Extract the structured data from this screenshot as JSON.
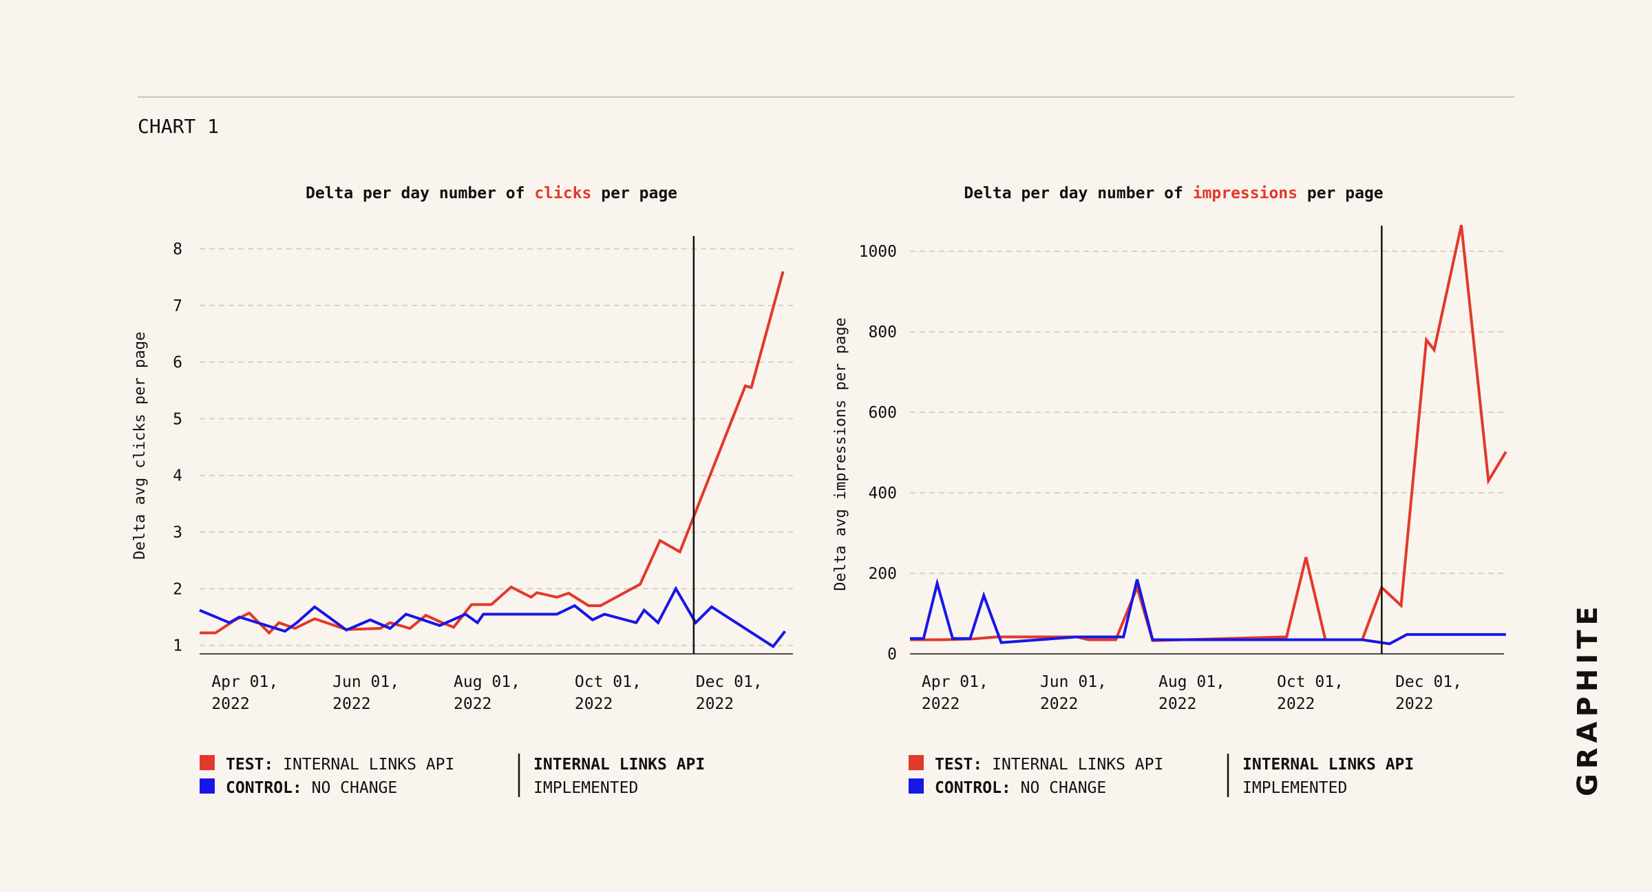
{
  "page": {
    "section_label": "CHART 1",
    "brand": "GRAPHITE"
  },
  "colors": {
    "background": "#FAF4EE",
    "test": "#E1392B",
    "control": "#1717E6",
    "grid": "#CFC7BC",
    "axis": "#111111",
    "rule": "#C8C3BD"
  },
  "legend": {
    "test_label": "TEST:",
    "test_value": "INTERNAL LINKS API",
    "control_label": "CONTROL:",
    "control_value": "NO CHANGE",
    "marker_line1": "INTERNAL LINKS API",
    "marker_line2": "IMPLEMENTED"
  },
  "chart_data": [
    {
      "type": "line",
      "title_parts": [
        "Delta per day number of ",
        "clicks",
        " per page"
      ],
      "ylabel": "Delta avg clicks per page",
      "xlabel": "",
      "ylim": [
        0.85,
        8.2
      ],
      "xlim": [
        "2022-03-26",
        "2023-01-19"
      ],
      "yticks": [
        1,
        2,
        3,
        4,
        5,
        6,
        7,
        8
      ],
      "xticks": [
        {
          "date": "2022-04-01",
          "line1": "Apr 01,",
          "line2": "2022"
        },
        {
          "date": "2022-06-01",
          "line1": "Jun 01,",
          "line2": "2022"
        },
        {
          "date": "2022-08-01",
          "line1": "Aug 01,",
          "line2": "2022"
        },
        {
          "date": "2022-10-01",
          "line1": "Oct 01,",
          "line2": "2022"
        },
        {
          "date": "2022-12-01",
          "line1": "Dec 01,",
          "line2": "2022"
        }
      ],
      "grid": true,
      "implementation_date": "2022-11-30",
      "series": [
        {
          "name": "TEST",
          "color": "#E1392B",
          "points": [
            [
              "2022-03-26",
              1.22
            ],
            [
              "2022-04-03",
              1.22
            ],
            [
              "2022-04-13",
              1.45
            ],
            [
              "2022-04-20",
              1.57
            ],
            [
              "2022-04-30",
              1.22
            ],
            [
              "2022-05-05",
              1.4
            ],
            [
              "2022-05-13",
              1.3
            ],
            [
              "2022-05-23",
              1.47
            ],
            [
              "2022-06-08",
              1.28
            ],
            [
              "2022-06-25",
              1.3
            ],
            [
              "2022-06-30",
              1.4
            ],
            [
              "2022-07-10",
              1.3
            ],
            [
              "2022-07-18",
              1.53
            ],
            [
              "2022-07-25",
              1.42
            ],
            [
              "2022-08-01",
              1.32
            ],
            [
              "2022-08-10",
              1.72
            ],
            [
              "2022-08-20",
              1.72
            ],
            [
              "2022-08-30",
              2.03
            ],
            [
              "2022-09-09",
              1.85
            ],
            [
              "2022-09-12",
              1.93
            ],
            [
              "2022-09-22",
              1.85
            ],
            [
              "2022-09-28",
              1.92
            ],
            [
              "2022-10-08",
              1.7
            ],
            [
              "2022-10-14",
              1.7
            ],
            [
              "2022-11-03",
              2.08
            ],
            [
              "2022-11-13",
              2.85
            ],
            [
              "2022-11-23",
              2.65
            ],
            [
              "2022-12-26",
              5.58
            ],
            [
              "2022-12-29",
              5.55
            ],
            [
              "2023-01-14",
              7.6
            ]
          ]
        },
        {
          "name": "CONTROL",
          "color": "#1717E6",
          "points": [
            [
              "2022-03-26",
              1.62
            ],
            [
              "2022-04-10",
              1.4
            ],
            [
              "2022-04-15",
              1.5
            ],
            [
              "2022-05-08",
              1.25
            ],
            [
              "2022-05-14",
              1.4
            ],
            [
              "2022-05-23",
              1.68
            ],
            [
              "2022-06-08",
              1.27
            ],
            [
              "2022-06-20",
              1.45
            ],
            [
              "2022-06-30",
              1.3
            ],
            [
              "2022-07-08",
              1.55
            ],
            [
              "2022-07-25",
              1.35
            ],
            [
              "2022-08-07",
              1.55
            ],
            [
              "2022-08-13",
              1.4
            ],
            [
              "2022-08-16",
              1.55
            ],
            [
              "2022-09-22",
              1.55
            ],
            [
              "2022-10-01",
              1.7
            ],
            [
              "2022-10-10",
              1.45
            ],
            [
              "2022-10-16",
              1.55
            ],
            [
              "2022-11-01",
              1.4
            ],
            [
              "2022-11-05",
              1.62
            ],
            [
              "2022-11-12",
              1.4
            ],
            [
              "2022-11-21",
              2.0
            ],
            [
              "2022-12-01",
              1.4
            ],
            [
              "2022-12-09",
              1.68
            ],
            [
              "2023-01-09",
              0.98
            ],
            [
              "2023-01-15",
              1.25
            ]
          ]
        }
      ]
    },
    {
      "type": "line",
      "title_parts": [
        "Delta per day number of ",
        "impressions",
        " per page"
      ],
      "ylabel": "Delta avg impressions per page",
      "xlabel": "",
      "ylim": [
        0,
        1060
      ],
      "xlim": [
        "2022-03-26",
        "2023-01-26"
      ],
      "yticks": [
        0,
        200,
        400,
        600,
        800,
        1000
      ],
      "xticks": [
        {
          "date": "2022-04-01",
          "line1": "Apr 01,",
          "line2": "2022"
        },
        {
          "date": "2022-06-01",
          "line1": "Jun 01,",
          "line2": "2022"
        },
        {
          "date": "2022-08-01",
          "line1": "Aug 01,",
          "line2": "2022"
        },
        {
          "date": "2022-10-01",
          "line1": "Oct 01,",
          "line2": "2022"
        },
        {
          "date": "2022-12-01",
          "line1": "Dec 01,",
          "line2": "2022"
        }
      ],
      "grid": true,
      "implementation_date": "2022-11-24",
      "series": [
        {
          "name": "TEST",
          "color": "#E1392B",
          "points": [
            [
              "2022-03-26",
              35
            ],
            [
              "2022-04-12",
              35
            ],
            [
              "2022-04-27",
              37
            ],
            [
              "2022-05-10",
              42
            ],
            [
              "2022-05-26",
              42
            ],
            [
              "2022-06-20",
              42
            ],
            [
              "2022-06-26",
              35
            ],
            [
              "2022-07-10",
              35
            ],
            [
              "2022-07-21",
              165
            ],
            [
              "2022-07-29",
              33
            ],
            [
              "2022-10-06",
              42
            ],
            [
              "2022-10-16",
              240
            ],
            [
              "2022-10-26",
              35
            ],
            [
              "2022-11-14",
              35
            ],
            [
              "2022-11-24",
              165
            ],
            [
              "2022-12-04",
              120
            ],
            [
              "2022-12-17",
              780
            ],
            [
              "2022-12-21",
              755
            ],
            [
              "2023-01-04",
              1065
            ],
            [
              "2023-01-18",
              430
            ],
            [
              "2023-01-27",
              502
            ]
          ]
        },
        {
          "name": "CONTROL",
          "color": "#1717E6",
          "points": [
            [
              "2022-03-26",
              38
            ],
            [
              "2022-04-02",
              38
            ],
            [
              "2022-04-09",
              175
            ],
            [
              "2022-04-17",
              38
            ],
            [
              "2022-04-26",
              38
            ],
            [
              "2022-05-03",
              145
            ],
            [
              "2022-05-12",
              28
            ],
            [
              "2022-06-20",
              42
            ],
            [
              "2022-07-14",
              42
            ],
            [
              "2022-07-21",
              185
            ],
            [
              "2022-07-29",
              35
            ],
            [
              "2022-11-14",
              35
            ],
            [
              "2022-11-28",
              25
            ],
            [
              "2022-12-07",
              48
            ],
            [
              "2023-01-27",
              48
            ]
          ]
        }
      ]
    }
  ]
}
